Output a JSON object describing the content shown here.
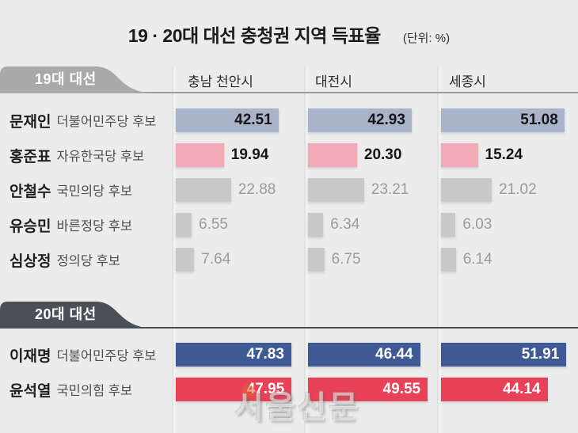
{
  "title": "19 · 20대 대선 충청권 지역 득표율",
  "unit": "(단위: %)",
  "columns": [
    "충남 천안시",
    "대전시",
    "세종시"
  ],
  "watermark": "서울신문",
  "colors": {
    "background": "#ececec",
    "tab19": "#a9a9a9",
    "tab20": "#4a5057",
    "bar_blue": "#a9b3ca",
    "bar_pink": "#f2abb6",
    "bar_gray": "#c9c9c9",
    "bar_navy": "#3e5994",
    "bar_red": "#e84158"
  },
  "sections": [
    {
      "tab": "19대 대선",
      "rows": [
        {
          "name": "문재인",
          "party": "더불어민주당 후보",
          "values": [
            42.51,
            42.93,
            51.08
          ],
          "display": [
            "42.51",
            "42.93",
            "51.08"
          ]
        },
        {
          "name": "홍준표",
          "party": "자유한국당 후보",
          "values": [
            19.94,
            20.3,
            15.24
          ],
          "display": [
            "19.94",
            "20.30",
            "15.24"
          ]
        },
        {
          "name": "안철수",
          "party": "국민의당 후보",
          "values": [
            22.88,
            23.21,
            21.02
          ],
          "display": [
            "22.88",
            "23.21",
            "21.02"
          ]
        },
        {
          "name": "유승민",
          "party": "바른정당 후보",
          "values": [
            6.55,
            6.34,
            6.03
          ],
          "display": [
            "6.55",
            "6.34",
            "6.03"
          ]
        },
        {
          "name": "심상정",
          "party": "정의당 후보",
          "values": [
            7.64,
            6.75,
            6.14
          ],
          "display": [
            "7.64",
            "6.75",
            "6.14"
          ]
        }
      ]
    },
    {
      "tab": "20대 대선",
      "rows": [
        {
          "name": "이재명",
          "party": "더불어민주당 후보",
          "values": [
            47.83,
            46.44,
            51.91
          ],
          "display": [
            "47.83",
            "46.44",
            "51.91"
          ]
        },
        {
          "name": "윤석열",
          "party": "국민의힘 후보",
          "values": [
            47.95,
            49.55,
            44.14
          ],
          "display": [
            "47.95",
            "49.55",
            "44.14"
          ]
        }
      ]
    }
  ],
  "chart_data": [
    {
      "type": "bar",
      "orientation": "horizontal",
      "title": "19대 대선",
      "categories": [
        "충남 천안시",
        "대전시",
        "세종시"
      ],
      "series": [
        {
          "name": "문재인 더불어민주당 후보",
          "values": [
            42.51,
            42.93,
            51.08
          ]
        },
        {
          "name": "홍준표 자유한국당 후보",
          "values": [
            19.94,
            20.3,
            15.24
          ]
        },
        {
          "name": "안철수 국민의당 후보",
          "values": [
            22.88,
            23.21,
            21.02
          ]
        },
        {
          "name": "유승민 바른정당 후보",
          "values": [
            6.55,
            6.34,
            6.03
          ]
        },
        {
          "name": "심상정 정의당 후보",
          "values": [
            7.64,
            6.75,
            6.14
          ]
        }
      ],
      "xlabel": "득표율",
      "ylabel": "",
      "unit": "%",
      "xlim": [
        0,
        55
      ],
      "grid": false,
      "legend_position": "left-row-labels"
    },
    {
      "type": "bar",
      "orientation": "horizontal",
      "title": "20대 대선",
      "categories": [
        "충남 천안시",
        "대전시",
        "세종시"
      ],
      "series": [
        {
          "name": "이재명 더불어민주당 후보",
          "values": [
            47.83,
            46.44,
            51.91
          ]
        },
        {
          "name": "윤석열 국민의힘 후보",
          "values": [
            47.95,
            49.55,
            44.14
          ]
        }
      ],
      "xlabel": "득표율",
      "ylabel": "",
      "unit": "%",
      "xlim": [
        0,
        55
      ],
      "grid": false,
      "legend_position": "left-row-labels"
    }
  ]
}
